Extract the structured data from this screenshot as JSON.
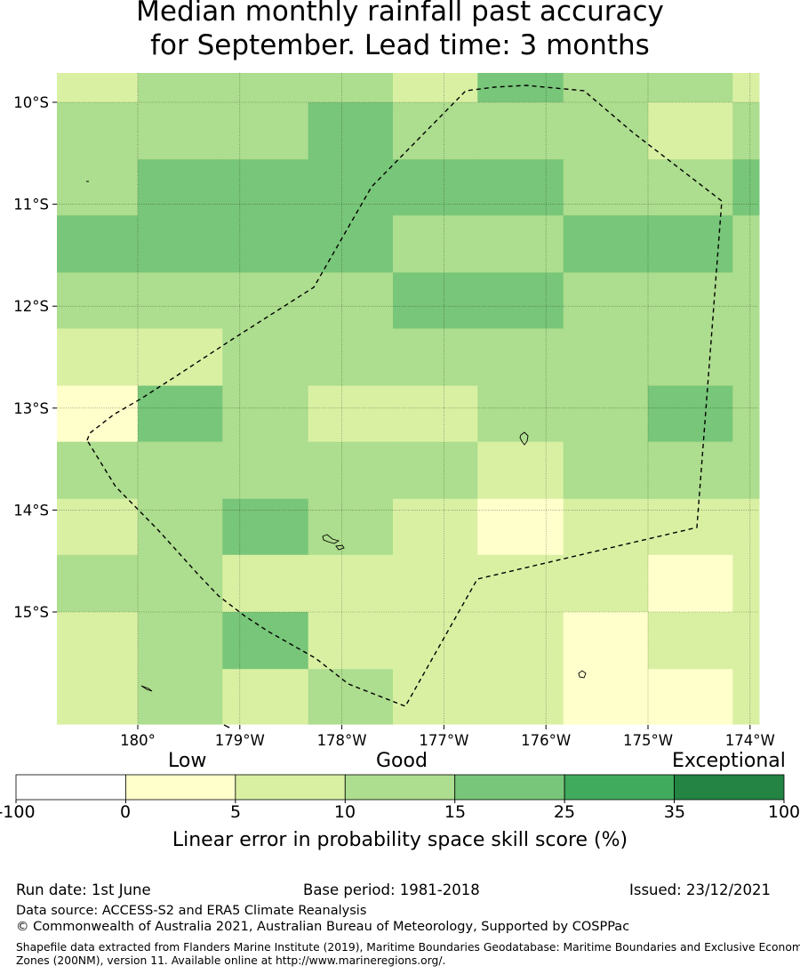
{
  "title": {
    "line1": "Median monthly rainfall past accuracy",
    "line2": "for September. Lead time: 3 months"
  },
  "map": {
    "lat_labels": [
      "10°S",
      "11°S",
      "12°S",
      "13°S",
      "14°S",
      "15°S"
    ],
    "lon_labels": [
      "180°",
      "179°W",
      "178°W",
      "177°W",
      "176°W",
      "175°W",
      "174°W"
    ],
    "grid_columns_lon_west": [
      180.8,
      180.0,
      179.17,
      178.33,
      177.5,
      176.67,
      175.83,
      175.0,
      174.17
    ],
    "grid_rows_lat_south": [
      9.7,
      10.0,
      10.56,
      11.11,
      11.67,
      12.22,
      12.78,
      13.33,
      13.89,
      14.44,
      15.0,
      15.56,
      16.1
    ],
    "skill_class_grid": [
      [
        2,
        3,
        3,
        3,
        2,
        4,
        3,
        3,
        2
      ],
      [
        3,
        3,
        3,
        4,
        3,
        3,
        3,
        2,
        3
      ],
      [
        3,
        4,
        4,
        4,
        4,
        4,
        3,
        3,
        4
      ],
      [
        4,
        4,
        4,
        4,
        3,
        3,
        4,
        4,
        3
      ],
      [
        3,
        3,
        3,
        3,
        4,
        4,
        3,
        3,
        3
      ],
      [
        2,
        2,
        3,
        3,
        3,
        3,
        3,
        3,
        3
      ],
      [
        1,
        4,
        3,
        2,
        2,
        3,
        3,
        4,
        3
      ],
      [
        3,
        3,
        3,
        3,
        3,
        2,
        3,
        3,
        3
      ],
      [
        2,
        3,
        4,
        3,
        2,
        1,
        2,
        2,
        2
      ],
      [
        3,
        3,
        2,
        2,
        2,
        2,
        2,
        1,
        2
      ],
      [
        2,
        3,
        4,
        2,
        2,
        2,
        1,
        2,
        2
      ],
      [
        2,
        3,
        2,
        3,
        2,
        2,
        1,
        1,
        2
      ]
    ],
    "class_colors": [
      "#ffffff",
      "#ffffcc",
      "#d9f0a3",
      "#addd8e",
      "#78c679",
      "#41ab5d",
      "#238443"
    ],
    "boundary_style": "dashed"
  },
  "colorbar": {
    "categories": [
      "Low",
      "Good",
      "Exceptional"
    ],
    "ticks": [
      "-100",
      "0",
      "5",
      "10",
      "15",
      "25",
      "35",
      "100"
    ],
    "colors": [
      "#ffffff",
      "#ffffcc",
      "#d9f0a3",
      "#addd8e",
      "#78c679",
      "#41ab5d",
      "#238443"
    ],
    "title": "Linear error in probability space skill score (%)"
  },
  "footer": {
    "run_date": "Run date: 1st June",
    "base_period": "Base period: 1981-2018",
    "issued": "Issued: 23/12/2021",
    "data_source": "Data source: ACCESS-S2 and ERA5 Climate Reanalysis",
    "copyright": "© Commonwealth of Australia 2021, Australian Bureau of Meteorology, Supported by COSPPac",
    "shapefile_line1": "Shapefile data extracted from Flanders Marine Institute (2019), Maritime Boundaries Geodatabase: Maritime Boundaries and Exclusive Economic",
    "shapefile_line2": "Zones (200NM), version 11. Available online at http://www.marineregions.org/."
  }
}
